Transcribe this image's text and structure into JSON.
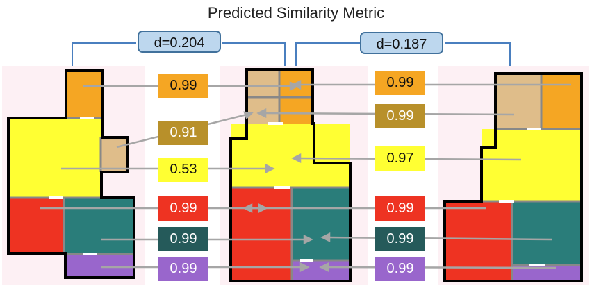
{
  "title": "Predicted Similarity Metric",
  "distances": [
    "d=0.204",
    "d=0.187"
  ],
  "left_scores": [
    {
      "value": "0.99",
      "color": "#f5a623",
      "text_color": "#111111"
    },
    {
      "value": "0.91",
      "color": "#b8902a",
      "text_color": "#ffffff"
    },
    {
      "value": "0.53",
      "color": "#ffff33",
      "text_color": "#111111"
    },
    {
      "value": "0.99",
      "color": "#ee3322",
      "text_color": "#ffffff"
    },
    {
      "value": "0.99",
      "color": "#255a5a",
      "text_color": "#ffffff"
    },
    {
      "value": "0.99",
      "color": "#9966cc",
      "text_color": "#ffffff"
    }
  ],
  "right_scores": [
    {
      "value": "0.99",
      "color": "#f5a623",
      "text_color": "#111111"
    },
    {
      "value": "0.99",
      "color": "#b8902a",
      "text_color": "#ffffff"
    },
    {
      "value": "0.97",
      "color": "#ffff33",
      "text_color": "#111111"
    },
    {
      "value": "0.99",
      "color": "#ee3322",
      "text_color": "#ffffff"
    },
    {
      "value": "0.99",
      "color": "#255a5a",
      "text_color": "#ffffff"
    },
    {
      "value": "0.99",
      "color": "#9966cc",
      "text_color": "#ffffff"
    }
  ],
  "room_colors": {
    "balcony": "#f5a623",
    "storage": "#dfbd8a",
    "living": "#ffff33",
    "bedroom": "#ee3322",
    "kitchen": "#2a7d7a",
    "bathroom": "#9966cc",
    "panel_bg": "#fdf0f4"
  }
}
